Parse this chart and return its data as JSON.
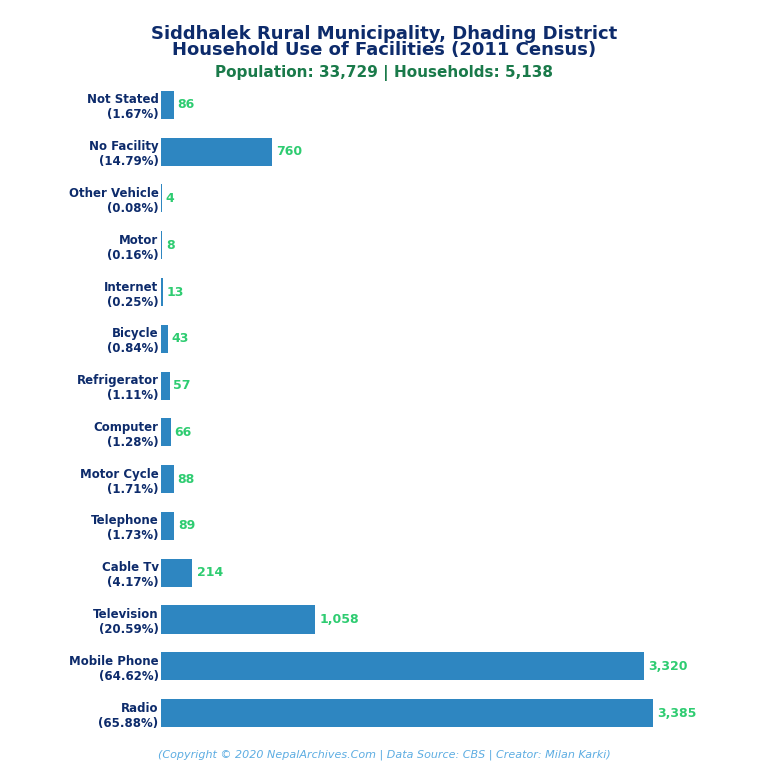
{
  "title_line1": "Siddhalek Rural Municipality, Dhading District",
  "title_line2": "Household Use of Facilities (2011 Census)",
  "subtitle": "Population: 33,729 | Households: 5,138",
  "copyright": "(Copyright © 2020 NepalArchives.Com | Data Source: CBS | Creator: Milan Karki)",
  "categories": [
    "Not Stated\n(1.67%)",
    "No Facility\n(14.79%)",
    "Other Vehicle\n(0.08%)",
    "Motor\n(0.16%)",
    "Internet\n(0.25%)",
    "Bicycle\n(0.84%)",
    "Refrigerator\n(1.11%)",
    "Computer\n(1.28%)",
    "Motor Cycle\n(1.71%)",
    "Telephone\n(1.73%)",
    "Cable Tv\n(4.17%)",
    "Television\n(20.59%)",
    "Mobile Phone\n(64.62%)",
    "Radio\n(65.88%)"
  ],
  "values": [
    86,
    760,
    4,
    8,
    13,
    43,
    57,
    66,
    88,
    89,
    214,
    1058,
    3320,
    3385
  ],
  "bar_color": "#2e86c1",
  "title_color": "#0d2b6b",
  "subtitle_color": "#1a7a4a",
  "value_color": "#2ecc71",
  "copyright_color": "#5dade2",
  "background_color": "#ffffff",
  "xlim": [
    0,
    3700
  ],
  "value_fontsize": 9,
  "label_fontsize": 8.5,
  "title_fontsize": 13,
  "subtitle_fontsize": 11,
  "copyright_fontsize": 8
}
